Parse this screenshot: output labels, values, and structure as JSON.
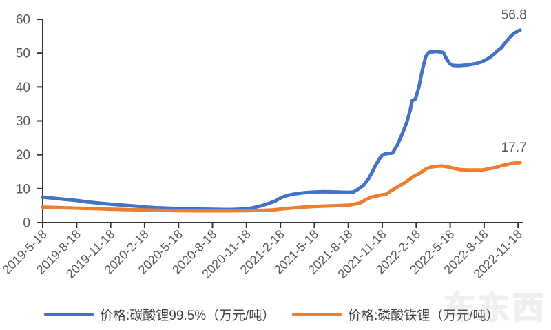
{
  "chart_data": {
    "type": "line",
    "title": "",
    "xlabel": "",
    "ylabel": "",
    "ylim": [
      0,
      60
    ],
    "xlim": [
      0,
      14
    ],
    "grid": false,
    "legend_position": "bottom",
    "axis_color": "#333333",
    "tick_label_color": "#595959",
    "y_ticks": [
      0,
      10,
      20,
      30,
      40,
      50,
      60
    ],
    "x_tick_labels": [
      "2019-5-18",
      "2019-8-18",
      "2019-11-18",
      "2020-2-18",
      "2020-5-18",
      "2020-8-18",
      "2020-11-18",
      "2021-2-18",
      "2021-5-18",
      "2021-8-18",
      "2021-11-18",
      "2022-2-18",
      "2022-5-18",
      "2022-8-18",
      "2022-11-18"
    ],
    "series": [
      {
        "name": "价格:碳酸锂99.5%（万元/吨）",
        "color": "#4472C4",
        "end_label": "56.8",
        "points": [
          [
            0,
            7.5
          ],
          [
            0.3,
            7.2
          ],
          [
            0.6,
            6.9
          ],
          [
            1,
            6.5
          ],
          [
            1.3,
            6.1
          ],
          [
            1.6,
            5.8
          ],
          [
            2,
            5.4
          ],
          [
            2.4,
            5.1
          ],
          [
            2.8,
            4.8
          ],
          [
            3,
            4.6
          ],
          [
            3.3,
            4.4
          ],
          [
            3.7,
            4.25
          ],
          [
            4,
            4.15
          ],
          [
            4.5,
            4.0
          ],
          [
            5,
            3.9
          ],
          [
            5.5,
            3.85
          ],
          [
            6,
            4.0
          ],
          [
            6.2,
            4.4
          ],
          [
            6.46,
            5.0
          ],
          [
            6.7,
            5.8
          ],
          [
            6.86,
            6.4
          ],
          [
            7.03,
            7.4
          ],
          [
            7.2,
            8.0
          ],
          [
            7.4,
            8.4
          ],
          [
            7.7,
            8.8
          ],
          [
            8,
            9.0
          ],
          [
            8.3,
            9.1
          ],
          [
            8.7,
            9.0
          ],
          [
            9,
            8.9
          ],
          [
            9.15,
            9.0
          ],
          [
            9.3,
            9.9
          ],
          [
            9.45,
            11.0
          ],
          [
            9.6,
            13.0
          ],
          [
            9.7,
            14.8
          ],
          [
            9.8,
            16.8
          ],
          [
            9.9,
            18.6
          ],
          [
            10,
            19.9
          ],
          [
            10.1,
            20.3
          ],
          [
            10.3,
            20.5
          ],
          [
            10.45,
            23.0
          ],
          [
            10.6,
            26.5
          ],
          [
            10.72,
            29.5
          ],
          [
            10.82,
            33.0
          ],
          [
            10.88,
            36.0
          ],
          [
            10.98,
            36.5
          ],
          [
            11.08,
            40.0
          ],
          [
            11.18,
            45.0
          ],
          [
            11.28,
            49.0
          ],
          [
            11.38,
            50.3
          ],
          [
            11.6,
            50.5
          ],
          [
            11.8,
            50.2
          ],
          [
            11.88,
            48.5
          ],
          [
            11.98,
            47.0
          ],
          [
            12.08,
            46.4
          ],
          [
            12.25,
            46.3
          ],
          [
            12.5,
            46.5
          ],
          [
            12.75,
            46.9
          ],
          [
            12.95,
            47.5
          ],
          [
            13.15,
            48.6
          ],
          [
            13.3,
            49.8
          ],
          [
            13.4,
            50.8
          ],
          [
            13.5,
            51.5
          ],
          [
            13.6,
            52.8
          ],
          [
            13.7,
            54.0
          ],
          [
            13.8,
            55.2
          ],
          [
            13.9,
            56.0
          ],
          [
            14,
            56.5
          ],
          [
            14.06,
            56.8
          ]
        ]
      },
      {
        "name": "价格:磷酸铁锂（万元/吨）",
        "color": "#ED7D31",
        "end_label": "17.7",
        "points": [
          [
            0,
            4.55
          ],
          [
            0.5,
            4.4
          ],
          [
            1,
            4.25
          ],
          [
            1.5,
            4.1
          ],
          [
            2,
            3.95
          ],
          [
            2.5,
            3.8
          ],
          [
            3,
            3.7
          ],
          [
            3.5,
            3.6
          ],
          [
            4,
            3.5
          ],
          [
            4.5,
            3.45
          ],
          [
            5,
            3.45
          ],
          [
            5.5,
            3.45
          ],
          [
            6,
            3.5
          ],
          [
            6.5,
            3.6
          ],
          [
            6.8,
            3.75
          ],
          [
            7.03,
            4.0
          ],
          [
            7.3,
            4.25
          ],
          [
            7.6,
            4.5
          ],
          [
            8,
            4.75
          ],
          [
            8.5,
            4.95
          ],
          [
            9,
            5.1
          ],
          [
            9.2,
            5.5
          ],
          [
            9.35,
            5.8
          ],
          [
            9.5,
            6.7
          ],
          [
            9.66,
            7.4
          ],
          [
            9.86,
            7.9
          ],
          [
            10,
            8.2
          ],
          [
            10.1,
            8.3
          ],
          [
            10.3,
            9.6
          ],
          [
            10.5,
            10.8
          ],
          [
            10.7,
            12.0
          ],
          [
            10.9,
            13.5
          ],
          [
            11.1,
            14.5
          ],
          [
            11.3,
            15.9
          ],
          [
            11.5,
            16.5
          ],
          [
            11.75,
            16.7
          ],
          [
            11.95,
            16.4
          ],
          [
            12.15,
            15.9
          ],
          [
            12.3,
            15.6
          ],
          [
            12.5,
            15.5
          ],
          [
            12.95,
            15.5
          ],
          [
            13.15,
            15.9
          ],
          [
            13.35,
            16.3
          ],
          [
            13.55,
            16.9
          ],
          [
            13.68,
            17.1
          ],
          [
            13.78,
            17.4
          ],
          [
            13.95,
            17.6
          ],
          [
            14.06,
            17.7
          ]
        ]
      }
    ]
  },
  "watermark": "车东西"
}
